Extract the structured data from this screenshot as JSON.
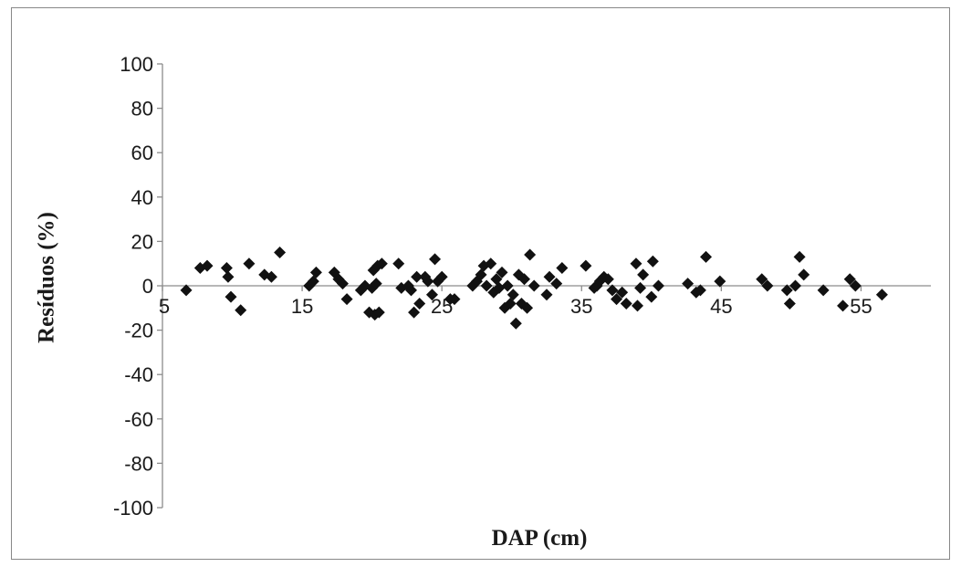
{
  "chart_data": {
    "type": "scatter",
    "title": "",
    "xlabel": "DAP (cm)",
    "ylabel": "Resíduos (%)",
    "xlim": [
      5,
      60
    ],
    "ylim": [
      -100,
      100
    ],
    "x_ticks": [
      5,
      15,
      25,
      35,
      45,
      55
    ],
    "y_ticks": [
      100,
      80,
      60,
      40,
      20,
      0,
      -20,
      -40,
      -60,
      -80,
      -100
    ],
    "grid": false,
    "legend": "none",
    "marker": "diamond",
    "marker_color": "#111111",
    "series": [
      {
        "x": [
          6.7,
          7.7,
          8.2,
          9.6,
          9.7,
          9.9,
          10.6,
          11.2,
          12.3,
          12.8,
          13.4,
          15.5,
          15.8,
          16.0,
          17.3,
          17.6,
          17.9,
          18.2,
          19.2,
          19.5,
          19.8,
          20.0,
          20.1,
          20.2,
          20.3,
          20.4,
          20.5,
          20.7,
          21.9,
          22.1,
          22.6,
          22.8,
          23.0,
          23.2,
          23.4,
          23.8,
          24.0,
          24.3,
          24.5,
          24.7,
          25.0,
          25.6,
          25.9,
          27.2,
          27.5,
          27.8,
          28.0,
          28.2,
          28.5,
          28.7,
          28.9,
          29.1,
          29.3,
          29.5,
          29.7,
          29.9,
          30.1,
          30.3,
          30.5,
          30.7,
          30.9,
          31.1,
          31.3,
          31.6,
          32.5,
          32.7,
          33.2,
          33.6,
          35.3,
          35.9,
          36.1,
          36.3,
          36.6,
          36.9,
          37.2,
          37.5,
          37.9,
          38.2,
          38.9,
          39.0,
          39.2,
          39.4,
          40.0,
          40.1,
          40.5,
          42.6,
          43.2,
          43.5,
          43.9,
          44.9,
          47.9,
          48.3,
          49.7,
          49.9,
          50.3,
          50.6,
          50.9,
          52.3,
          53.7,
          54.2,
          54.6,
          56.5
        ],
        "y": [
          -2,
          8,
          9,
          8,
          4,
          -5,
          -11,
          10,
          5,
          4,
          15,
          0,
          2,
          6,
          6,
          3,
          1,
          -6,
          -2,
          0,
          -12,
          -1,
          7,
          -13,
          1,
          9,
          -12,
          10,
          10,
          -1,
          0,
          -2,
          -12,
          4,
          -8,
          4,
          2,
          -4,
          12,
          2,
          4,
          -6,
          -6,
          0,
          2,
          5,
          9,
          0,
          10,
          -3,
          3,
          -1,
          6,
          -10,
          0,
          -8,
          -4,
          -17,
          5,
          -8,
          3,
          -10,
          14,
          0,
          -4,
          4,
          1,
          8,
          9,
          -1,
          0,
          2,
          4,
          3,
          -2,
          -6,
          -3,
          -8,
          10,
          -9,
          -1,
          5,
          -5,
          11,
          0,
          1,
          -3,
          -2,
          13,
          2,
          3,
          0,
          -2,
          -8,
          0,
          13,
          5,
          -2,
          -9,
          3,
          0,
          -4
        ]
      }
    ]
  }
}
